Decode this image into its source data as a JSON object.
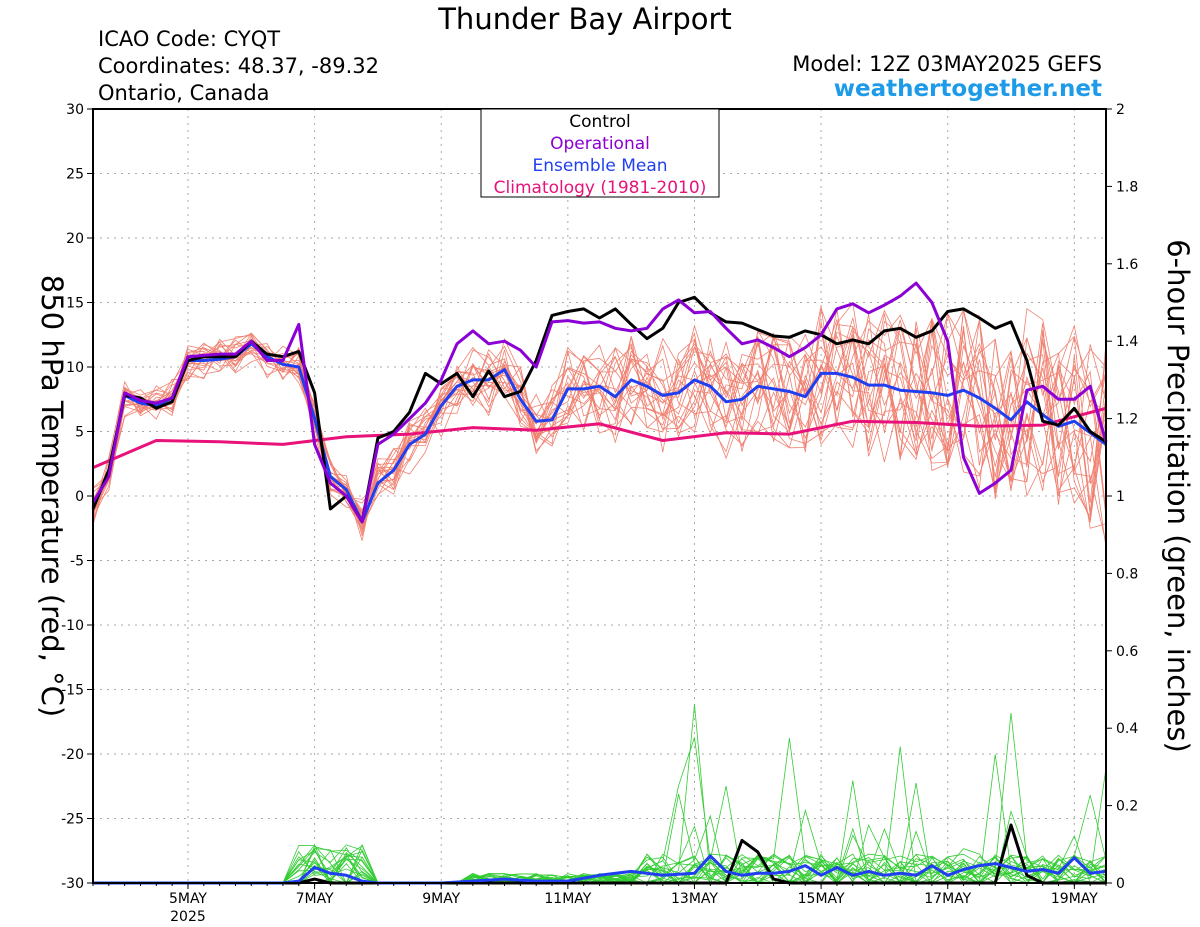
{
  "header": {
    "title": "Thunder Bay Airport",
    "icao": "ICAO Code: CYQT",
    "coordinates": "Coordinates: 48.37, -89.32",
    "region": "Ontario, Canada",
    "model": "Model: 12Z 03MAY2025 GEFS",
    "site": "weathertogether.net"
  },
  "chart_data": {
    "type": "line",
    "title": "Thunder Bay Airport",
    "ylabel": "850 hPa Temperature (red, °C)",
    "y2label": "6-hour Precipitation (green, inches)",
    "ylim": [
      -30,
      30
    ],
    "y2lim": [
      0,
      2
    ],
    "yticks": [
      "30",
      "25",
      "20",
      "15",
      "10",
      "5",
      "0",
      "-5",
      "-10",
      "-15",
      "-20",
      "-25",
      "-30"
    ],
    "y2ticks": [
      "2",
      "1.8",
      "1.6",
      "1.4",
      "1.2",
      "1",
      "0.8",
      "0.6",
      "0.4",
      "0.2",
      "0"
    ],
    "x_range": [
      3.5,
      19.5
    ],
    "x_unit": "day of May 2025 (UTC)",
    "xticks": [
      {
        "x": 5,
        "label": "5MAY",
        "sub": "2025"
      },
      {
        "x": 7,
        "label": "7MAY",
        "sub": ""
      },
      {
        "x": 9,
        "label": "9MAY",
        "sub": ""
      },
      {
        "x": 11,
        "label": "11MAY",
        "sub": ""
      },
      {
        "x": 13,
        "label": "13MAY",
        "sub": ""
      },
      {
        "x": 15,
        "label": "15MAY",
        "sub": ""
      },
      {
        "x": 17,
        "label": "17MAY",
        "sub": ""
      },
      {
        "x": 19,
        "label": "19MAY",
        "sub": ""
      }
    ],
    "grid": true,
    "legend_position": "top-center",
    "legend": [
      {
        "label": "Control",
        "color": "#000000"
      },
      {
        "label": "Operational",
        "color": "#8b00d4"
      },
      {
        "label": "Ensemble Mean",
        "color": "#1f3ff0"
      },
      {
        "label": "Climatology (1981-2010)",
        "color": "#e8127a"
      }
    ],
    "temperature_series": [
      {
        "role": "control",
        "color": "#000000",
        "x": [
          3.5,
          3.75,
          4.0,
          4.25,
          4.5,
          4.75,
          5.0,
          5.25,
          5.5,
          5.75,
          6.0,
          6.25,
          6.5,
          6.75,
          7.0,
          7.25,
          7.5,
          7.75,
          8.0,
          8.25,
          8.5,
          8.75,
          9.0,
          9.25,
          9.5,
          9.75,
          10.0,
          10.25,
          10.5,
          10.75,
          11.0,
          11.25,
          11.5,
          11.75,
          12.0,
          12.25,
          12.5,
          12.75,
          13.0,
          13.25,
          13.5,
          13.75,
          14.0,
          14.25,
          14.5,
          14.75,
          15.0,
          15.25,
          15.5,
          15.75,
          16.0,
          16.25,
          16.5,
          16.75,
          17.0,
          17.25,
          17.5,
          17.75,
          18.0,
          18.25,
          18.5,
          18.75,
          19.0,
          19.25,
          19.5
        ],
        "y": [
          -1,
          2,
          7.8,
          7.6,
          6.8,
          7.3,
          10.5,
          10.8,
          10.8,
          10.8,
          12,
          11,
          10.8,
          11.2,
          8,
          -1,
          0,
          -2,
          4.5,
          5,
          6.5,
          9.5,
          8.7,
          9.5,
          7.7,
          9.7,
          7.7,
          8.1,
          10.5,
          14,
          14.3,
          14.5,
          13.8,
          14.5,
          13.3,
          12.2,
          13,
          15,
          15.4,
          14.2,
          13.5,
          13.4,
          12.9,
          12.4,
          12.3,
          12.8,
          12.5,
          11.8,
          12.1,
          11.8,
          12.8,
          13,
          12.3,
          12.8,
          14.3,
          14.5,
          13.8,
          13,
          13.5,
          10.5,
          5.8,
          5.5,
          6.8,
          5,
          4.2
        ]
      },
      {
        "role": "operational",
        "color": "#8b00d4",
        "x": [
          3.5,
          3.75,
          4.0,
          4.25,
          4.5,
          4.75,
          5.0,
          5.25,
          5.5,
          5.75,
          6.0,
          6.25,
          6.5,
          6.75,
          7.0,
          7.25,
          7.5,
          7.75,
          8.0,
          8.25,
          8.5,
          8.75,
          9.0,
          9.25,
          9.5,
          9.75,
          10.0,
          10.25,
          10.5,
          10.75,
          11.0,
          11.25,
          11.5,
          11.75,
          12.0,
          12.25,
          12.5,
          12.75,
          13.0,
          13.25,
          13.5,
          13.75,
          14.0,
          14.25,
          14.5,
          14.75,
          15.0,
          15.25,
          15.5,
          15.75,
          16.0,
          16.25,
          16.5,
          16.75,
          17.0,
          17.25,
          17.5,
          17.75,
          18.0,
          18.25,
          18.5,
          18.75,
          19.0,
          19.25,
          19.5
        ],
        "y": [
          -0.5,
          1.5,
          8,
          7.4,
          7.2,
          7.6,
          10.8,
          10.9,
          11,
          11,
          12,
          10.5,
          10.5,
          13.3,
          4,
          1,
          0,
          -2,
          4,
          4.8,
          6,
          7.2,
          9,
          11.8,
          12.8,
          11.8,
          12,
          11.3,
          10,
          13.5,
          13.6,
          13.4,
          13.5,
          13,
          12.8,
          13,
          14.5,
          15.2,
          14.2,
          14.3,
          13,
          11.8,
          12.1,
          11.5,
          10.8,
          11.5,
          12.5,
          14.5,
          14.9,
          14.2,
          14.8,
          15.5,
          16.5,
          15,
          12,
          3,
          0.2,
          1,
          2,
          8.2,
          8.5,
          7.5,
          7.5,
          8.5,
          4.2
        ]
      },
      {
        "role": "ensemble-mean",
        "color": "#1f3ff0",
        "x": [
          3.5,
          3.75,
          4.0,
          4.25,
          4.5,
          4.75,
          5.0,
          5.25,
          5.5,
          5.75,
          6.0,
          6.25,
          6.5,
          6.75,
          7.0,
          7.25,
          7.5,
          7.75,
          8.0,
          8.25,
          8.5,
          8.75,
          9.0,
          9.25,
          9.5,
          9.75,
          10.0,
          10.25,
          10.5,
          10.75,
          11.0,
          11.25,
          11.5,
          11.75,
          12.0,
          12.25,
          12.5,
          12.75,
          13.0,
          13.25,
          13.5,
          13.75,
          14.0,
          14.25,
          14.5,
          14.75,
          15.0,
          15.25,
          15.5,
          15.75,
          16.0,
          16.25,
          16.5,
          16.75,
          17.0,
          17.25,
          17.5,
          17.75,
          18.0,
          18.25,
          18.5,
          18.75,
          19.0,
          19.25,
          19.5
        ],
        "y": [
          -0.8,
          1.8,
          7.8,
          7.2,
          7,
          7.6,
          10.5,
          10.5,
          10.6,
          10.8,
          11.8,
          10.8,
          10.2,
          10,
          6,
          1.5,
          0.5,
          -2,
          1,
          2,
          4,
          4.8,
          7,
          8.5,
          9,
          9,
          9.8,
          7.5,
          5.8,
          5.9,
          8.3,
          8.3,
          8.5,
          7.7,
          9,
          8.5,
          7.8,
          8.0,
          9,
          8.5,
          7.3,
          7.5,
          8.5,
          8.3,
          8.1,
          7.7,
          9.5,
          9.5,
          9.2,
          8.6,
          8.6,
          8.2,
          8.1,
          8.0,
          7.8,
          8.2,
          7.6,
          6.8,
          5.9,
          7.3,
          6.3,
          5.4,
          5.8,
          4.9,
          4.0
        ]
      },
      {
        "role": "climatology",
        "color": "#e8127a",
        "x": [
          3.5,
          4.5,
          5.5,
          6.5,
          7.5,
          8.5,
          9.5,
          10.5,
          11.5,
          12.5,
          13.5,
          14.5,
          15.5,
          16.5,
          17.5,
          18.5,
          19.5
        ],
        "y": [
          2.2,
          4.3,
          4.2,
          4.0,
          4.6,
          4.8,
          5.3,
          5.1,
          5.6,
          4.3,
          4.9,
          4.8,
          5.8,
          5.7,
          5.4,
          5.5,
          6.8
        ]
      }
    ],
    "temperature_members": {
      "color": "#f08070",
      "count": 21,
      "note": "individual ensemble members (thin red lines)"
    },
    "precip_series": [
      {
        "role": "control",
        "color": "#000000",
        "x": [
          3.5,
          6.75,
          7.0,
          7.25,
          7.5,
          7.75,
          8.0,
          13.0,
          13.25,
          13.5,
          13.75,
          14.0,
          14.25,
          14.5,
          14.75,
          17.5,
          17.75,
          18.0,
          18.25,
          18.5,
          19.5
        ],
        "y": [
          0,
          0,
          0.01,
          0,
          0,
          0,
          0,
          0,
          0,
          0,
          0.11,
          0.08,
          0.01,
          0,
          0,
          0,
          0,
          0.15,
          0.02,
          0,
          0
        ]
      },
      {
        "role": "ensemble-mean",
        "color": "#1f3ff0",
        "x": [
          3.5,
          6.5,
          6.75,
          7.0,
          7.25,
          7.5,
          7.75,
          8.0,
          9.0,
          9.5,
          10.0,
          10.5,
          11.0,
          11.5,
          12.0,
          12.5,
          13.0,
          13.25,
          13.5,
          13.75,
          14.0,
          14.25,
          14.5,
          14.75,
          15.0,
          15.25,
          15.5,
          15.75,
          16.0,
          16.25,
          16.5,
          16.75,
          17.0,
          17.25,
          17.5,
          17.75,
          18.0,
          18.25,
          18.5,
          18.75,
          19.0,
          19.25,
          19.5
        ],
        "y": [
          0,
          0,
          0.005,
          0.04,
          0.025,
          0.02,
          0.005,
          0,
          0,
          0.005,
          0.01,
          0.005,
          0.005,
          0.02,
          0.03,
          0.02,
          0.025,
          0.07,
          0.03,
          0.02,
          0.025,
          0.025,
          0.03,
          0.045,
          0.02,
          0.04,
          0.02,
          0.03,
          0.02,
          0.025,
          0.02,
          0.045,
          0.02,
          0.035,
          0.045,
          0.05,
          0.04,
          0.03,
          0.035,
          0.025,
          0.065,
          0.025,
          0.03
        ]
      }
    ],
    "precip_members": {
      "color": "#33cc33",
      "count": 21,
      "note": "individual ensemble members (thin green lines)"
    }
  }
}
